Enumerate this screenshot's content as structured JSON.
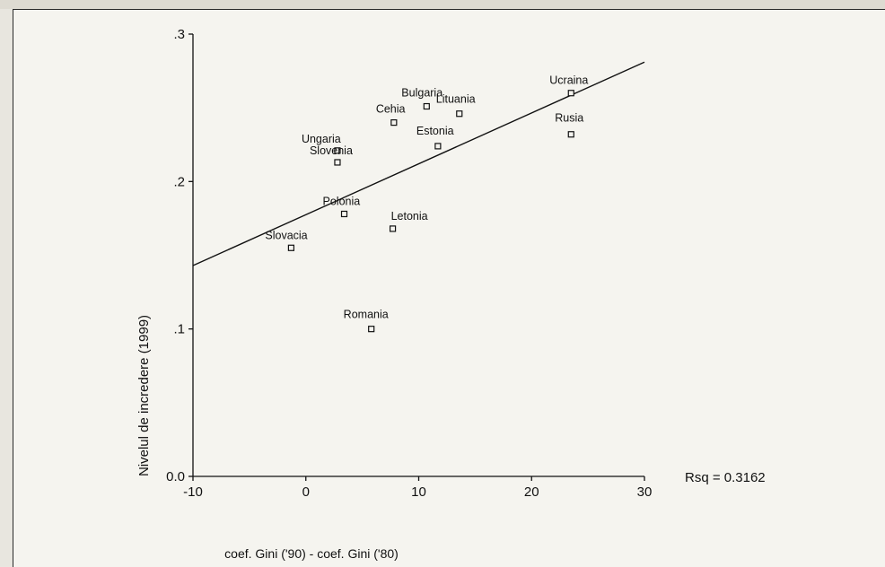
{
  "chart_data": {
    "type": "scatter",
    "xlabel": "coef. Gini ('90) - coef. Gini ('80)",
    "ylabel": "Nivelul de incredere (1999)",
    "xlim": [
      -10,
      30
    ],
    "ylim": [
      0.0,
      0.3
    ],
    "x_ticks": [
      -10,
      0,
      10,
      20,
      30
    ],
    "x_tick_labels": [
      "-10",
      "0",
      "10",
      "20",
      "30"
    ],
    "y_ticks": [
      0.0,
      0.1,
      0.2,
      0.3
    ],
    "y_tick_labels": [
      "0.0",
      ".1",
      ".2",
      ".3"
    ],
    "grid": false,
    "points": [
      {
        "label": "Ucraina",
        "x": 23.5,
        "y": 0.26
      },
      {
        "label": "Rusia",
        "x": 23.5,
        "y": 0.232
      },
      {
        "label": "Bulgaria",
        "x": 10.7,
        "y": 0.251
      },
      {
        "label": "Lituania",
        "x": 13.6,
        "y": 0.246
      },
      {
        "label": "Cehia",
        "x": 7.8,
        "y": 0.24
      },
      {
        "label": "Estonia",
        "x": 11.7,
        "y": 0.224
      },
      {
        "label": "Ungaria",
        "x": 2.8,
        "y": 0.221
      },
      {
        "label": "Slovenia",
        "x": 2.8,
        "y": 0.213
      },
      {
        "label": "Polonia",
        "x": 3.4,
        "y": 0.178
      },
      {
        "label": "Letonia",
        "x": 7.7,
        "y": 0.168
      },
      {
        "label": "Slovacia",
        "x": -1.3,
        "y": 0.155
      },
      {
        "label": "Romania",
        "x": 5.8,
        "y": 0.1
      }
    ],
    "fit_line": {
      "x": [
        -10,
        30
      ],
      "y": [
        0.143,
        0.281
      ]
    },
    "annotation": "Rsq = 0.3162"
  }
}
